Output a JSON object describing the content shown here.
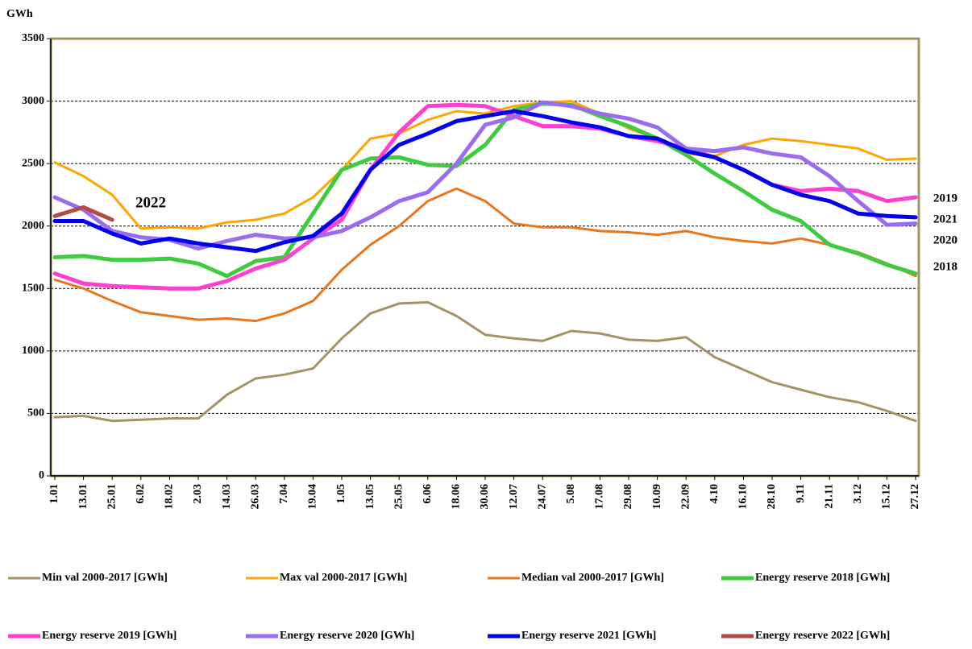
{
  "chart_data": {
    "type": "line",
    "y_label": "GWh",
    "categories": [
      "1.01",
      "13.01",
      "25.01",
      "6.02",
      "18.02",
      "2.03",
      "14.03",
      "26.03",
      "7.04",
      "19.04",
      "1.05",
      "13.05",
      "25.05",
      "6.06",
      "18.06",
      "30.06",
      "12.07",
      "24.07",
      "5.08",
      "17.08",
      "29.08",
      "10.09",
      "22.09",
      "4.10",
      "16.10",
      "28.10",
      "9.11",
      "21.11",
      "3.12",
      "15.12",
      "27.12"
    ],
    "ylim": [
      0,
      3500
    ],
    "yticks": [
      0,
      500,
      1000,
      1500,
      2000,
      2500,
      3000,
      3500
    ],
    "grid": true,
    "series": [
      {
        "name": "Min val 2000-2017 [GWh]",
        "color": "#a39466",
        "width": 3,
        "values": [
          470,
          480,
          440,
          450,
          460,
          460,
          650,
          780,
          810,
          860,
          1100,
          1300,
          1380,
          1390,
          1280,
          1130,
          1100,
          1080,
          1160,
          1140,
          1090,
          1080,
          1110,
          950,
          850,
          750,
          690,
          630,
          590,
          520,
          440
        ]
      },
      {
        "name": "Max val 2000-2017 [GWh]",
        "color": "#ffa500",
        "width": 3,
        "values": [
          2510,
          2400,
          2250,
          1980,
          1990,
          1980,
          2030,
          2050,
          2100,
          2230,
          2450,
          2700,
          2740,
          2850,
          2920,
          2900,
          2960,
          2990,
          3000,
          2900,
          2780,
          2700,
          2580,
          2560,
          2650,
          2700,
          2680,
          2650,
          2620,
          2530,
          2540
        ]
      },
      {
        "name": "Median val 2000-2017 [GWh]",
        "color": "#e8761e",
        "width": 3,
        "values": [
          1570,
          1500,
          1400,
          1310,
          1280,
          1250,
          1260,
          1240,
          1300,
          1400,
          1650,
          1850,
          2000,
          2200,
          2300,
          2200,
          2020,
          1990,
          1990,
          1960,
          1950,
          1930,
          1960,
          1910,
          1880,
          1860,
          1900,
          1850,
          1790,
          1700,
          1600
        ]
      },
      {
        "name": "Energy reserve 2018 [GWh]",
        "color": "#3ecc3e",
        "width": 5,
        "values": [
          1750,
          1760,
          1730,
          1730,
          1740,
          1700,
          1600,
          1720,
          1750,
          2100,
          2450,
          2540,
          2550,
          2490,
          2480,
          2650,
          2930,
          2980,
          2970,
          2880,
          2800,
          2700,
          2570,
          2420,
          2280,
          2130,
          2040,
          1850,
          1780,
          1690,
          1620
        ]
      },
      {
        "name": "Energy reserve 2019 [GWh]",
        "color": "#ff3fcf",
        "width": 5,
        "values": [
          1620,
          1540,
          1520,
          1510,
          1500,
          1500,
          1560,
          1660,
          1730,
          1900,
          2050,
          2450,
          2750,
          2960,
          2970,
          2960,
          2880,
          2800,
          2800,
          2780,
          2720,
          2680,
          2620,
          2550,
          2450,
          2330,
          2280,
          2300,
          2280,
          2200,
          2230
        ]
      },
      {
        "name": "Energy reserve 2020 [GWh]",
        "color": "#9a6cf0",
        "width": 5,
        "values": [
          2230,
          2130,
          1960,
          1910,
          1890,
          1820,
          1880,
          1930,
          1900,
          1910,
          1960,
          2070,
          2200,
          2270,
          2500,
          2810,
          2870,
          2990,
          2960,
          2900,
          2860,
          2790,
          2620,
          2600,
          2630,
          2580,
          2550,
          2400,
          2200,
          2010,
          2020
        ]
      },
      {
        "name": "Energy reserve 2021 [GWh]",
        "color": "#0000ee",
        "width": 5,
        "values": [
          2040,
          2040,
          1940,
          1860,
          1900,
          1860,
          1830,
          1800,
          1870,
          1920,
          2100,
          2450,
          2650,
          2740,
          2840,
          2880,
          2920,
          2880,
          2830,
          2790,
          2720,
          2700,
          2600,
          2550,
          2450,
          2330,
          2250,
          2200,
          2100,
          2080,
          2070
        ]
      },
      {
        "name": "Energy reserve 2022 [GWh]",
        "color": "#b24a4a",
        "width": 5,
        "values": [
          2080,
          2150,
          2050,
          null,
          null,
          null,
          null,
          null,
          null,
          null,
          null,
          null,
          null,
          null,
          null,
          null,
          null,
          null,
          null,
          null,
          null,
          null,
          null,
          null,
          null,
          null,
          null,
          null,
          null,
          null,
          null
        ]
      }
    ],
    "annotations": [
      {
        "text": "2022",
        "color": "#b24a4a"
      },
      {
        "text": "2019",
        "color": "#ff3fcf"
      },
      {
        "text": "2021",
        "color": "#0000ee"
      },
      {
        "text": "2020",
        "color": "#9a6cf0"
      },
      {
        "text": "2018",
        "color": "#3ecc3e"
      }
    ]
  }
}
